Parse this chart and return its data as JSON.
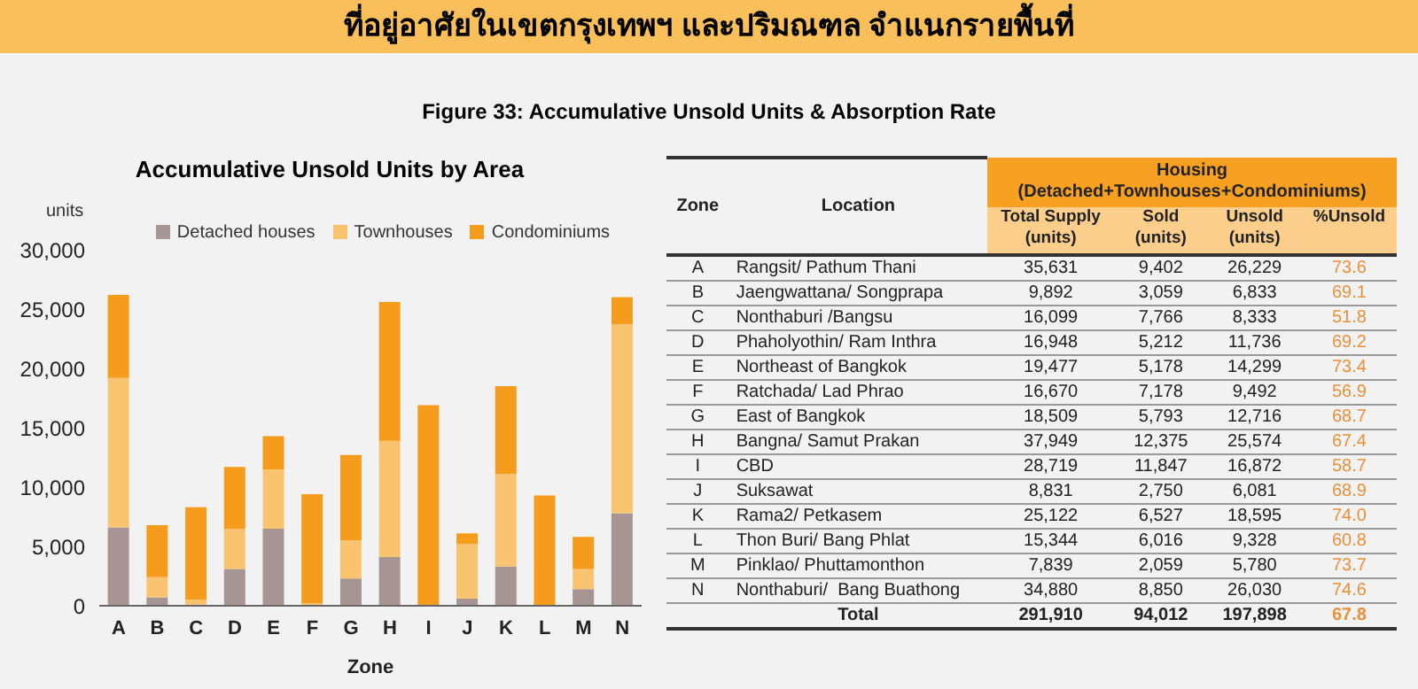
{
  "chart_data": [
    {
      "type": "bar",
      "title": "Accumulative Unsold Units by Area",
      "xlabel": "Zone",
      "ylabel": "units",
      "categories": [
        "A",
        "B",
        "C",
        "D",
        "E",
        "F",
        "G",
        "H",
        "I",
        "J",
        "K",
        "L",
        "M",
        "N"
      ],
      "stacked": true,
      "legend": "top",
      "ylim": [
        0,
        30000
      ],
      "yticks": [
        0,
        {
          "value": 5000,
          "label": "5,000"
        },
        {
          "value": 10000,
          "label": "10,000"
        },
        {
          "value": 15000,
          "label": "15,000"
        },
        {
          "value": 20000,
          "label": "20,000"
        },
        {
          "value": 25000,
          "label": "25,000"
        },
        {
          "value": 30000,
          "label": "30,000"
        }
      ],
      "series": [
        {
          "name": "Detached houses",
          "color": "#a69593",
          "values": [
            6600,
            700,
            0,
            3100,
            6500,
            0,
            2300,
            4100,
            0,
            600,
            3300,
            0,
            1400,
            7800
          ]
        },
        {
          "name": "Townhouses",
          "color": "#f9c36f",
          "values": [
            12600,
            1700,
            500,
            3400,
            5000,
            200,
            3200,
            9800,
            0,
            4600,
            7800,
            0,
            1700,
            15900
          ]
        },
        {
          "name": "Condominiums",
          "color": "#f59c1c",
          "values": [
            7000,
            4400,
            7800,
            5200,
            2800,
            9200,
            7200,
            11700,
            16900,
            900,
            7400,
            9300,
            2700,
            2300
          ]
        }
      ]
    },
    {
      "type": "other",
      "title": "ที่อยู่อาศัยในเขตกรุงเทพฯ และปริมณฑล จำแนกรายพื้นที่",
      "subtitle": "Figure 33: Accumulative Unsold Units & Absorption Rate",
      "xlabel": "Zone",
      "ylabel": "Location",
      "legend_title": "Housing (Detached+Townhouses+Condominiums)",
      "categories": [
        "A",
        "B",
        "C",
        "D",
        "E",
        "F",
        "G",
        "H",
        "I",
        "J",
        "K",
        "L",
        "M",
        "N"
      ],
      "y_categories": [
        "Rangsit/ Pathum Thani",
        "Jaengwattana/ Songprapa",
        "Nonthaburi /Bangsu",
        "Phaholyothin/ Ram Inthra",
        "Northeast of Bangkok",
        "Ratchada/ Lad Phrao",
        "East of Bangkok",
        "Bangna/ Samut Prakan",
        "CBD",
        "Suksawat",
        "Rama2/ Petkasem",
        "Thon Buri/ Bang Phlat",
        "Pinklao/ Phuttamonthon",
        "Nonthaburi/  Bang Buathong"
      ],
      "annotations": [
        "Total"
      ],
      "totals": [
        "291,910",
        "94,012",
        "197,898",
        "67.8"
      ],
      "series": [
        {
          "name": "Total Supply (units)",
          "values": [
            35631,
            9892,
            16099,
            16948,
            19477,
            16670,
            18509,
            37949,
            28719,
            8831,
            25122,
            15344,
            7839,
            34880
          ],
          "value_labels": [
            "35,631",
            "9,892",
            "16,099",
            "16,948",
            "19,477",
            "16,670",
            "18,509",
            "37,949",
            "28,719",
            "8,831",
            "25,122",
            "15,344",
            "7,839",
            "34,880"
          ]
        },
        {
          "name": "Sold (units)",
          "values": [
            9402,
            3059,
            7766,
            5212,
            5178,
            7178,
            5793,
            12375,
            11847,
            2750,
            6527,
            6016,
            2059,
            8850
          ],
          "value_labels": [
            "9,402",
            "3,059",
            "7,766",
            "5,212",
            "5,178",
            "7,178",
            "5,793",
            "12,375",
            "11,847",
            "2,750",
            "6,527",
            "6,016",
            "2,059",
            "8,850"
          ]
        },
        {
          "name": "Unsold (units)",
          "values": [
            26229,
            6833,
            8333,
            11736,
            14299,
            9492,
            12716,
            25574,
            16872,
            6081,
            18595,
            9328,
            5780,
            26030
          ],
          "value_labels": [
            "26,229",
            "6,833",
            "8,333",
            "11,736",
            "14,299",
            "9,492",
            "12,716",
            "25,574",
            "16,872",
            "6,081",
            "18,595",
            "9,328",
            "5,780",
            "26,030"
          ]
        },
        {
          "name": "%Unsold",
          "values": [
            73.6,
            69.1,
            51.8,
            69.2,
            73.4,
            56.9,
            68.7,
            67.4,
            58.7,
            68.9,
            74.0,
            60.8,
            73.7,
            74.6
          ],
          "value_labels": [
            "73.6",
            "69.1",
            "51.8",
            "69.2",
            "73.4",
            "56.9",
            "68.7",
            "67.4",
            "58.7",
            "68.9",
            "74.0",
            "60.8",
            "73.7",
            "74.6"
          ]
        }
      ]
    }
  ]
}
